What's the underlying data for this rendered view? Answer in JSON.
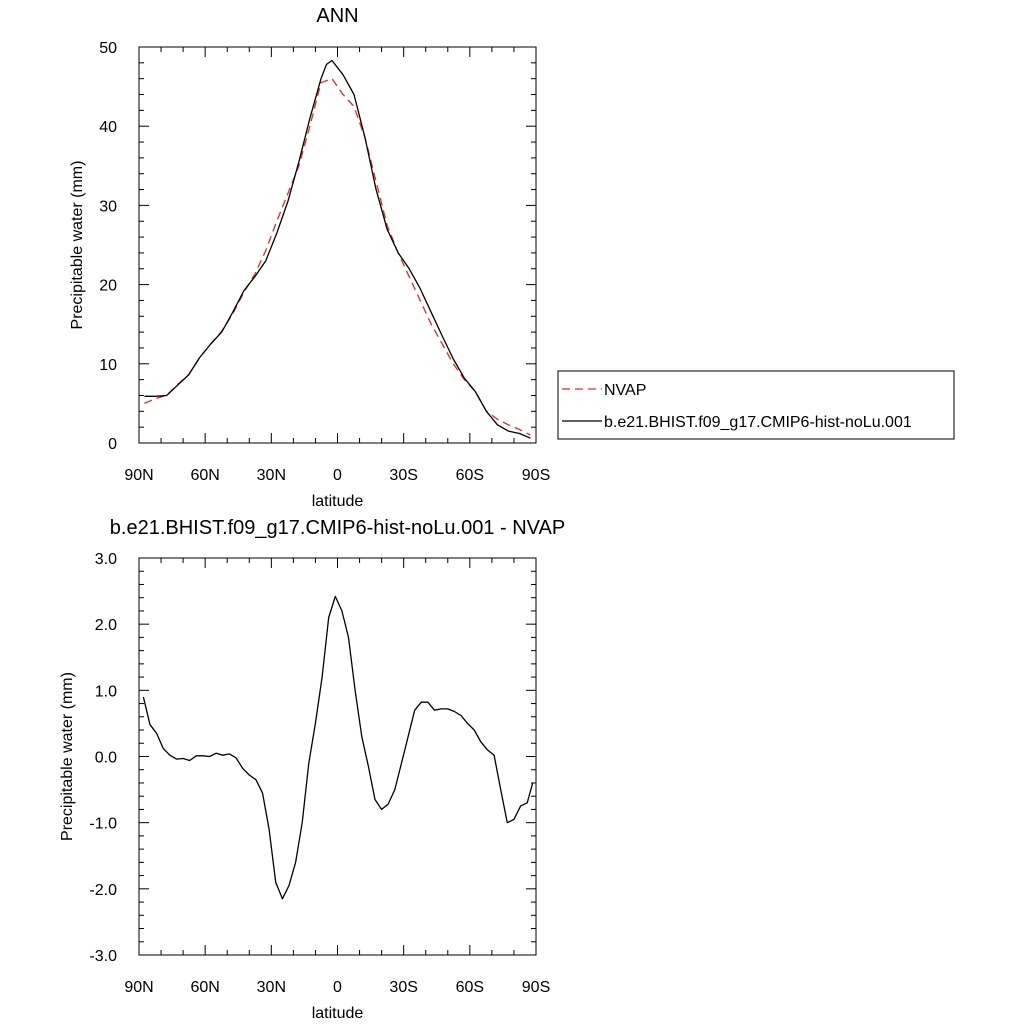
{
  "chart_data": [
    {
      "type": "line",
      "title": "ANN",
      "xlabel": "latitude",
      "ylabel": "Precipitable water (mm)",
      "xlim": [
        90,
        -90
      ],
      "ylim": [
        0,
        50
      ],
      "x_ticks": [
        90,
        60,
        30,
        0,
        -30,
        -60,
        -90
      ],
      "x_tick_labels": [
        "90N",
        "60N",
        "30N",
        "0",
        "30S",
        "60S",
        "90S"
      ],
      "y_ticks": [
        0,
        10,
        20,
        30,
        40,
        50
      ],
      "y_tick_labels": [
        "0",
        "10",
        "20",
        "30",
        "40",
        "50"
      ],
      "grid": false,
      "legend_position": "right",
      "series": [
        {
          "name": "NVAP",
          "color": "#e8252a",
          "dash": "dashed",
          "x": [
            87.5,
            82.5,
            77.5,
            72.5,
            67.5,
            62.5,
            57.5,
            52.5,
            47.5,
            42.5,
            37.5,
            32.5,
            27.5,
            22.5,
            17.5,
            12.5,
            7.5,
            2.5,
            -2.5,
            -7.5,
            -12.5,
            -17.5,
            -22.5,
            -27.5,
            -32.5,
            -37.5,
            -42.5,
            -47.5,
            -52.5,
            -57.5,
            -62.5,
            -67.5,
            -72.5,
            -77.5,
            -82.5,
            -87.5
          ],
          "y": [
            5.0,
            5.6,
            6.0,
            7.4,
            8.6,
            10.8,
            12.5,
            14.1,
            16.3,
            19.0,
            21.3,
            24.3,
            28.0,
            31.5,
            35.0,
            40.0,
            45.5,
            46.0,
            44.0,
            42.5,
            38.5,
            33.0,
            27.5,
            24.0,
            21.0,
            18.0,
            15.0,
            12.5,
            10.0,
            8.0,
            6.5,
            4.0,
            3.0,
            2.3,
            1.7,
            1.0
          ]
        },
        {
          "name": "b.e21.BHIST.f09_g17.CMIP6-hist-noLu.001",
          "color": "#000000",
          "dash": "solid",
          "x": [
            87.5,
            82.5,
            77.5,
            72.5,
            67.5,
            62.5,
            57.5,
            52.5,
            47.5,
            42.5,
            37.5,
            32.5,
            27.5,
            22.5,
            17.5,
            12.5,
            7.5,
            5.0,
            2.5,
            -2.5,
            -7.5,
            -12.5,
            -17.5,
            -22.5,
            -27.5,
            -32.5,
            -37.5,
            -42.5,
            -47.5,
            -52.5,
            -57.5,
            -62.5,
            -67.5,
            -72.5,
            -77.5,
            -82.5,
            -87.5
          ],
          "y": [
            5.9,
            5.9,
            6.0,
            7.3,
            8.6,
            10.8,
            12.5,
            14.0,
            16.5,
            19.2,
            21.0,
            23.0,
            26.5,
            30.5,
            35.5,
            41.0,
            46.0,
            47.8,
            48.3,
            46.5,
            44.0,
            38.5,
            32.0,
            27.0,
            24.0,
            22.0,
            19.5,
            16.5,
            13.5,
            10.6,
            8.2,
            6.5,
            4.0,
            2.3,
            1.5,
            1.2,
            0.6
          ]
        }
      ]
    },
    {
      "type": "line",
      "title": "b.e21.BHIST.f09_g17.CMIP6-hist-noLu.001 - NVAP",
      "xlabel": "latitude",
      "ylabel": "Precipitable water (mm)",
      "xlim": [
        90,
        -90
      ],
      "ylim": [
        -3.0,
        3.0
      ],
      "x_ticks": [
        90,
        60,
        30,
        0,
        -30,
        -60,
        -90
      ],
      "x_tick_labels": [
        "90N",
        "60N",
        "30N",
        "0",
        "30S",
        "60S",
        "90S"
      ],
      "y_ticks": [
        -3,
        -2,
        -1,
        0,
        1,
        2,
        3
      ],
      "y_tick_labels": [
        "-3.0",
        "-2.0",
        "-1.0",
        "0.0",
        "1.0",
        "2.0",
        "3.0"
      ],
      "grid": false,
      "series": [
        {
          "color": "#000000",
          "dash": "solid",
          "x": [
            88.0,
            85.0,
            82.0,
            79.0,
            76.0,
            73.0,
            70.0,
            67.0,
            64.0,
            61.0,
            58.0,
            55.0,
            52.0,
            49.0,
            46.0,
            43.0,
            40.0,
            37.0,
            34.0,
            31.0,
            28.0,
            25.0,
            22.0,
            19.0,
            16.0,
            13.0,
            10.0,
            7.0,
            4.0,
            1.0,
            -2.0,
            -5.0,
            -8.0,
            -11.0,
            -14.0,
            -17.0,
            -20.0,
            -23.0,
            -26.0,
            -29.0,
            -32.0,
            -35.0,
            -38.0,
            -41.0,
            -44.0,
            -47.0,
            -50.0,
            -53.0,
            -56.0,
            -59.0,
            -62.0,
            -65.0,
            -68.0,
            -71.0,
            -74.0,
            -77.0,
            -80.0,
            -83.0,
            -86.0,
            -88.5
          ],
          "y": [
            0.9,
            0.48,
            0.35,
            0.12,
            0.02,
            -0.04,
            -0.03,
            -0.06,
            0.01,
            0.01,
            0.0,
            0.05,
            0.02,
            0.04,
            -0.02,
            -0.18,
            -0.28,
            -0.35,
            -0.55,
            -1.1,
            -1.9,
            -2.15,
            -1.95,
            -1.6,
            -1.0,
            -0.1,
            0.5,
            1.2,
            2.1,
            2.42,
            2.2,
            1.8,
            1.0,
            0.3,
            -0.15,
            -0.65,
            -0.8,
            -0.72,
            -0.5,
            -0.1,
            0.3,
            0.7,
            0.82,
            0.82,
            0.7,
            0.72,
            0.72,
            0.68,
            0.62,
            0.5,
            0.4,
            0.22,
            0.1,
            0.02,
            -0.5,
            -1.0,
            -0.95,
            -0.75,
            -0.7,
            -0.4
          ]
        }
      ]
    }
  ]
}
